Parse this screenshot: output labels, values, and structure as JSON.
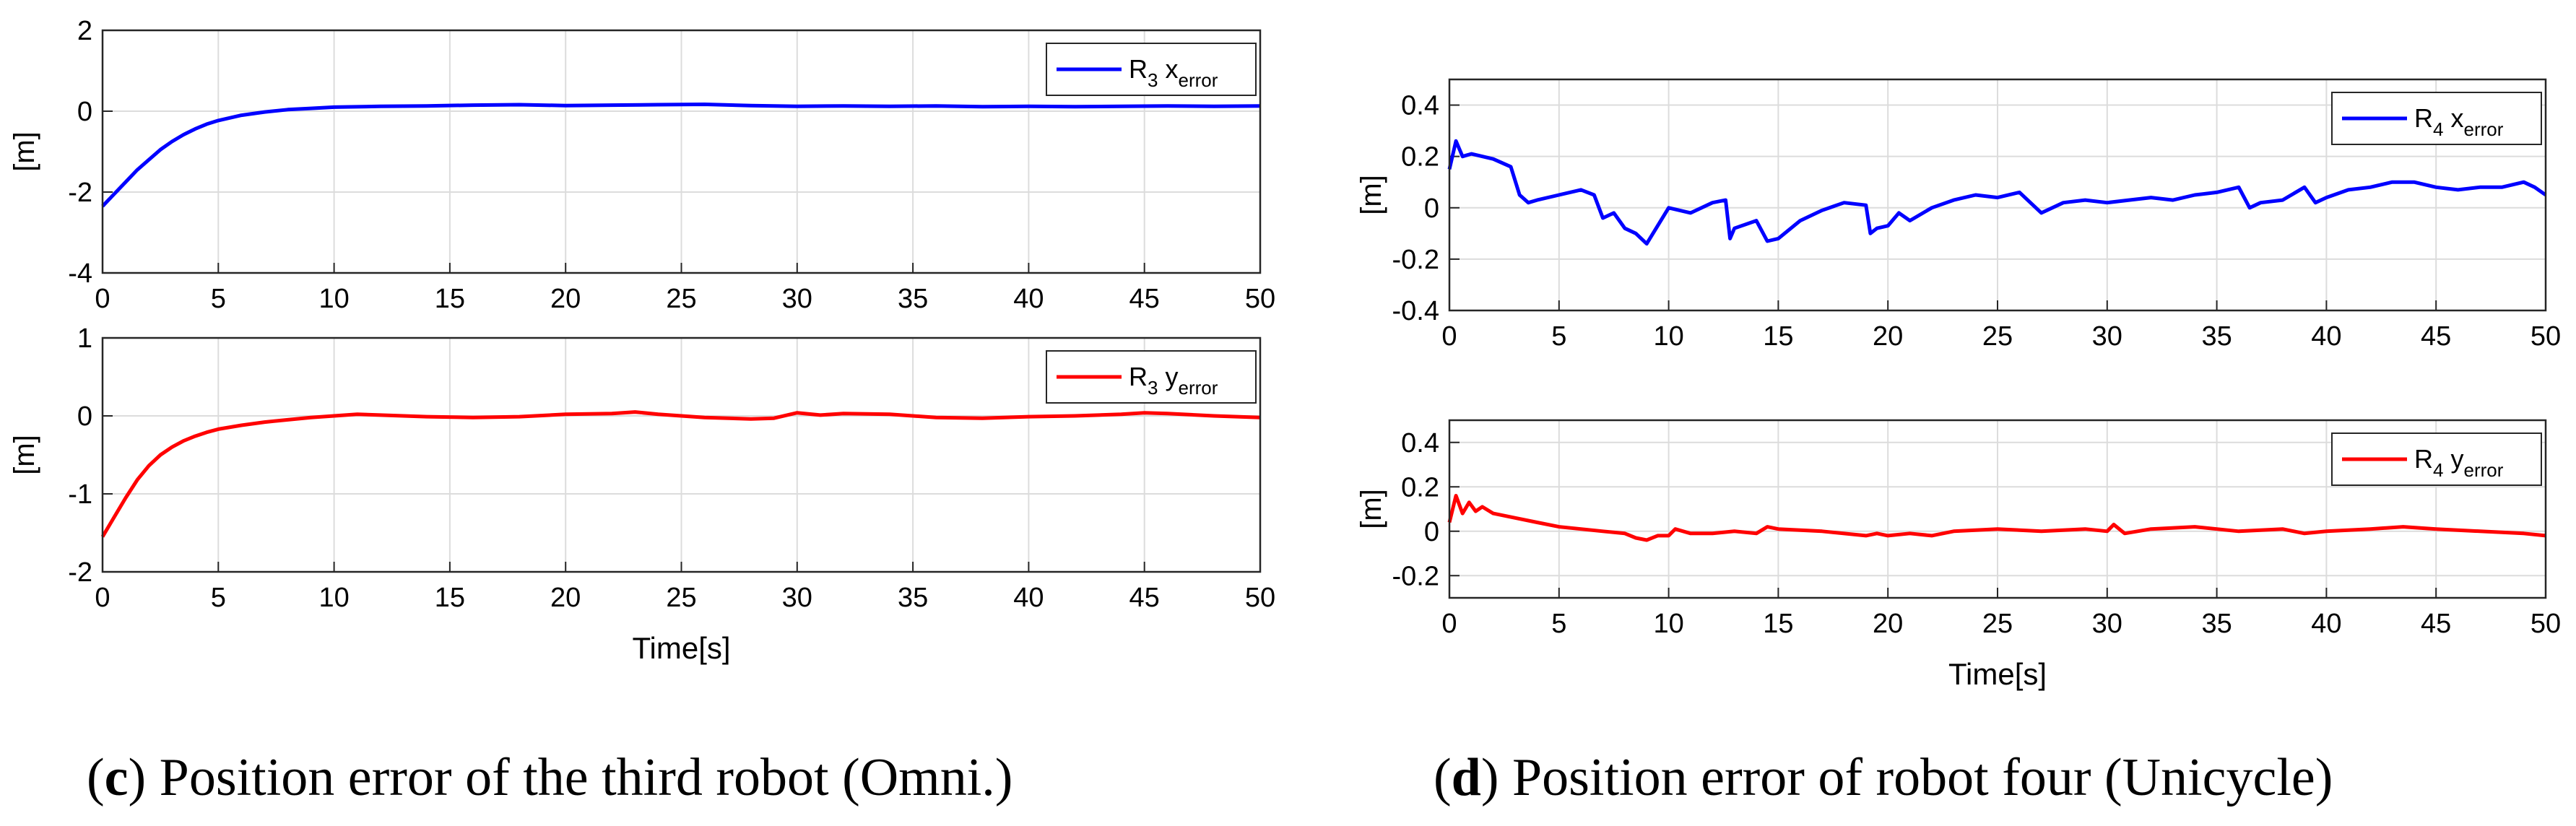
{
  "figure": {
    "captions": [
      {
        "letter": "c",
        "text": "Position error of the third robot (Omni.)"
      },
      {
        "letter": "d",
        "text": "Position error of robot four (Unicycle)"
      }
    ]
  },
  "colors": {
    "blue": "#0000ff",
    "red": "#ff0000",
    "grid": "#dcdcdc",
    "axis": "#262626"
  },
  "chart_data": [
    {
      "id": "c-x",
      "type": "line",
      "title": "",
      "xlabel": "",
      "ylabel": "[m]",
      "xlim": [
        0,
        50
      ],
      "ylim": [
        -4,
        2
      ],
      "xticks": [
        0,
        5,
        10,
        15,
        20,
        25,
        30,
        35,
        40,
        45,
        50
      ],
      "yticks": [
        -4,
        -2,
        0,
        2
      ],
      "legend": {
        "label": "R",
        "sub": "3",
        "var": "x",
        "varsub": "error",
        "position": "top-right"
      },
      "series": [
        {
          "name": "R3 x_error",
          "color": "#0000ff",
          "x": [
            0,
            0.5,
            1,
            1.5,
            2,
            2.5,
            3,
            3.5,
            4,
            4.5,
            5,
            6,
            7,
            8,
            9,
            10,
            12,
            14,
            16,
            18,
            20,
            22,
            24,
            26,
            28,
            30,
            32,
            34,
            36,
            38,
            40,
            42,
            44,
            46,
            48,
            50
          ],
          "y": [
            -2.35,
            -2.05,
            -1.75,
            -1.45,
            -1.2,
            -0.95,
            -0.75,
            -0.58,
            -0.44,
            -0.32,
            -0.23,
            -0.1,
            -0.02,
            0.04,
            0.07,
            0.1,
            0.12,
            0.13,
            0.15,
            0.16,
            0.14,
            0.15,
            0.16,
            0.17,
            0.14,
            0.12,
            0.13,
            0.12,
            0.13,
            0.11,
            0.12,
            0.11,
            0.12,
            0.13,
            0.12,
            0.13
          ]
        }
      ]
    },
    {
      "id": "c-y",
      "type": "line",
      "title": "",
      "xlabel": "Time[s]",
      "ylabel": "[m]",
      "xlim": [
        0,
        50
      ],
      "ylim": [
        -2,
        1
      ],
      "xticks": [
        0,
        5,
        10,
        15,
        20,
        25,
        30,
        35,
        40,
        45,
        50
      ],
      "yticks": [
        -2,
        -1,
        0,
        1
      ],
      "legend": {
        "label": "R",
        "sub": "3",
        "var": "y",
        "varsub": "error",
        "position": "top-right"
      },
      "series": [
        {
          "name": "R3 y_error",
          "color": "#ff0000",
          "x": [
            0,
            0.5,
            1,
            1.5,
            2,
            2.5,
            3,
            3.5,
            4,
            4.5,
            5,
            6,
            7,
            8,
            9,
            10,
            11,
            12,
            14,
            16,
            18,
            20,
            22,
            23,
            24,
            26,
            28,
            29,
            30,
            31,
            32,
            34,
            36,
            38,
            40,
            42,
            44,
            45,
            46,
            48,
            50
          ],
          "y": [
            -1.55,
            -1.3,
            -1.05,
            -0.82,
            -0.64,
            -0.5,
            -0.4,
            -0.32,
            -0.26,
            -0.21,
            -0.17,
            -0.12,
            -0.08,
            -0.05,
            -0.02,
            0.0,
            0.02,
            0.01,
            -0.01,
            -0.02,
            -0.01,
            0.02,
            0.03,
            0.05,
            0.02,
            -0.02,
            -0.04,
            -0.03,
            0.04,
            0.01,
            0.03,
            0.02,
            -0.02,
            -0.03,
            -0.01,
            0.0,
            0.02,
            0.04,
            0.03,
            0.0,
            -0.02
          ]
        }
      ]
    },
    {
      "id": "d-x",
      "type": "line",
      "title": "",
      "xlabel": "",
      "ylabel": "[m]",
      "xlim": [
        0,
        50
      ],
      "ylim": [
        -0.4,
        0.5
      ],
      "xticks": [
        0,
        5,
        10,
        15,
        20,
        25,
        30,
        35,
        40,
        45,
        50
      ],
      "yticks": [
        -0.4,
        -0.2,
        0,
        0.2,
        0.4
      ],
      "legend": {
        "label": "R",
        "sub": "4",
        "var": "x",
        "varsub": "error",
        "position": "top-right"
      },
      "series": [
        {
          "name": "R4 x_error",
          "color": "#0000ff",
          "x": [
            0,
            0.3,
            0.6,
            1,
            2,
            2.8,
            3.2,
            3.6,
            4,
            5,
            6,
            6.6,
            7,
            7.5,
            8,
            8.5,
            9,
            9.5,
            10,
            11,
            12,
            12.6,
            12.8,
            13,
            14,
            14.5,
            15,
            16,
            17,
            18,
            19,
            19.2,
            19.5,
            20,
            20.5,
            21,
            22,
            23,
            24,
            25,
            26,
            27,
            28,
            29,
            30,
            31,
            32,
            33,
            34,
            35,
            36,
            36.5,
            37,
            38,
            39,
            39.5,
            40,
            41,
            42,
            43,
            44,
            45,
            46,
            47,
            48,
            49,
            49.5,
            50
          ],
          "y": [
            0.15,
            0.26,
            0.2,
            0.21,
            0.19,
            0.16,
            0.05,
            0.02,
            0.03,
            0.05,
            0.07,
            0.05,
            -0.04,
            -0.02,
            -0.08,
            -0.1,
            -0.14,
            -0.07,
            0.0,
            -0.02,
            0.02,
            0.03,
            -0.12,
            -0.08,
            -0.05,
            -0.13,
            -0.12,
            -0.05,
            -0.01,
            0.02,
            0.01,
            -0.1,
            -0.08,
            -0.07,
            -0.02,
            -0.05,
            0.0,
            0.03,
            0.05,
            0.04,
            0.06,
            -0.02,
            0.02,
            0.03,
            0.02,
            0.03,
            0.04,
            0.03,
            0.05,
            0.06,
            0.08,
            0.0,
            0.02,
            0.03,
            0.08,
            0.02,
            0.04,
            0.07,
            0.08,
            0.1,
            0.1,
            0.08,
            0.07,
            0.08,
            0.08,
            0.1,
            0.08,
            0.05
          ]
        }
      ]
    },
    {
      "id": "d-y",
      "type": "line",
      "title": "",
      "xlabel": "Time[s]",
      "ylabel": "[m]",
      "xlim": [
        0,
        50
      ],
      "ylim": [
        -0.3,
        0.5
      ],
      "xticks": [
        0,
        5,
        10,
        15,
        20,
        25,
        30,
        35,
        40,
        45,
        50
      ],
      "yticks": [
        -0.2,
        0,
        0.2,
        0.4
      ],
      "legend": {
        "label": "R",
        "sub": "4",
        "var": "y",
        "varsub": "error",
        "position": "top-right"
      },
      "series": [
        {
          "name": "R4 y_error",
          "color": "#ff0000",
          "x": [
            0,
            0.3,
            0.6,
            0.9,
            1.2,
            1.5,
            2,
            3,
            4,
            5,
            6,
            7,
            8,
            8.5,
            9,
            9.5,
            10,
            10.3,
            11,
            12,
            13,
            14,
            14.5,
            15,
            17,
            19,
            19.5,
            20,
            21,
            22,
            23,
            25,
            27,
            29,
            30,
            30.3,
            30.8,
            32,
            34,
            36,
            38,
            39,
            40,
            42,
            43.5,
            45,
            47,
            49,
            50
          ],
          "y": [
            0.04,
            0.16,
            0.08,
            0.13,
            0.09,
            0.11,
            0.08,
            0.06,
            0.04,
            0.02,
            0.01,
            0.0,
            -0.01,
            -0.03,
            -0.04,
            -0.02,
            -0.02,
            0.01,
            -0.01,
            -0.01,
            0.0,
            -0.01,
            0.02,
            0.01,
            0.0,
            -0.02,
            -0.01,
            -0.02,
            -0.01,
            -0.02,
            0.0,
            0.01,
            0.0,
            0.01,
            0.0,
            0.03,
            -0.01,
            0.01,
            0.02,
            0.0,
            0.01,
            -0.01,
            0.0,
            0.01,
            0.02,
            0.01,
            0.0,
            -0.01,
            -0.02
          ]
        }
      ]
    }
  ]
}
